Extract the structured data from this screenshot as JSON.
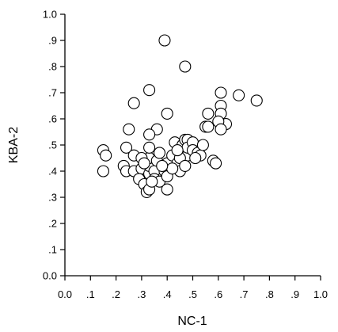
{
  "chart_data": {
    "type": "scatter",
    "title": "",
    "xlabel": "NC-1",
    "ylabel": "KBA-2",
    "xlim": [
      0.0,
      1.0
    ],
    "ylim": [
      0.0,
      1.0
    ],
    "grid": false,
    "legend": "none",
    "x_tick_labels": [
      "0.0",
      ".1",
      ".2",
      ".3",
      ".4",
      ".5",
      ".6",
      ".7",
      ".8",
      ".9",
      "1.0"
    ],
    "y_tick_labels": [
      "0.0",
      ".1",
      ".2",
      ".3",
      ".4",
      ".5",
      ".6",
      ".7",
      ".8",
      ".9",
      "1.0"
    ],
    "series": [
      {
        "marker": "open-circle",
        "points": [
          [
            0.39,
            0.9
          ],
          [
            0.47,
            0.8
          ],
          [
            0.33,
            0.71
          ],
          [
            0.27,
            0.66
          ],
          [
            0.4,
            0.62
          ],
          [
            0.61,
            0.7
          ],
          [
            0.68,
            0.69
          ],
          [
            0.75,
            0.67
          ],
          [
            0.61,
            0.65
          ],
          [
            0.61,
            0.62
          ],
          [
            0.63,
            0.58
          ],
          [
            0.56,
            0.62
          ],
          [
            0.6,
            0.59
          ],
          [
            0.61,
            0.56
          ],
          [
            0.25,
            0.56
          ],
          [
            0.36,
            0.56
          ],
          [
            0.33,
            0.54
          ],
          [
            0.55,
            0.57
          ],
          [
            0.56,
            0.57
          ],
          [
            0.15,
            0.48
          ],
          [
            0.16,
            0.46
          ],
          [
            0.15,
            0.4
          ],
          [
            0.24,
            0.49
          ],
          [
            0.23,
            0.42
          ],
          [
            0.24,
            0.4
          ],
          [
            0.27,
            0.46
          ],
          [
            0.27,
            0.4
          ],
          [
            0.3,
            0.41
          ],
          [
            0.29,
            0.37
          ],
          [
            0.31,
            0.35
          ],
          [
            0.32,
            0.32
          ],
          [
            0.33,
            0.33
          ],
          [
            0.33,
            0.39
          ],
          [
            0.33,
            0.42
          ],
          [
            0.33,
            0.45
          ],
          [
            0.33,
            0.49
          ],
          [
            0.35,
            0.4
          ],
          [
            0.35,
            0.37
          ],
          [
            0.37,
            0.36
          ],
          [
            0.36,
            0.44
          ],
          [
            0.37,
            0.47
          ],
          [
            0.39,
            0.4
          ],
          [
            0.4,
            0.43
          ],
          [
            0.4,
            0.38
          ],
          [
            0.4,
            0.33
          ],
          [
            0.42,
            0.46
          ],
          [
            0.43,
            0.51
          ],
          [
            0.44,
            0.43
          ],
          [
            0.45,
            0.4
          ],
          [
            0.46,
            0.5
          ],
          [
            0.47,
            0.52
          ],
          [
            0.48,
            0.52
          ],
          [
            0.48,
            0.46
          ],
          [
            0.48,
            0.49
          ],
          [
            0.5,
            0.51
          ],
          [
            0.5,
            0.48
          ],
          [
            0.52,
            0.47
          ],
          [
            0.53,
            0.46
          ],
          [
            0.54,
            0.5
          ],
          [
            0.58,
            0.44
          ],
          [
            0.59,
            0.43
          ],
          [
            0.45,
            0.45
          ],
          [
            0.42,
            0.41
          ],
          [
            0.38,
            0.42
          ],
          [
            0.3,
            0.45
          ],
          [
            0.34,
            0.36
          ],
          [
            0.31,
            0.43
          ],
          [
            0.44,
            0.48
          ],
          [
            0.47,
            0.42
          ],
          [
            0.51,
            0.45
          ]
        ]
      }
    ]
  }
}
